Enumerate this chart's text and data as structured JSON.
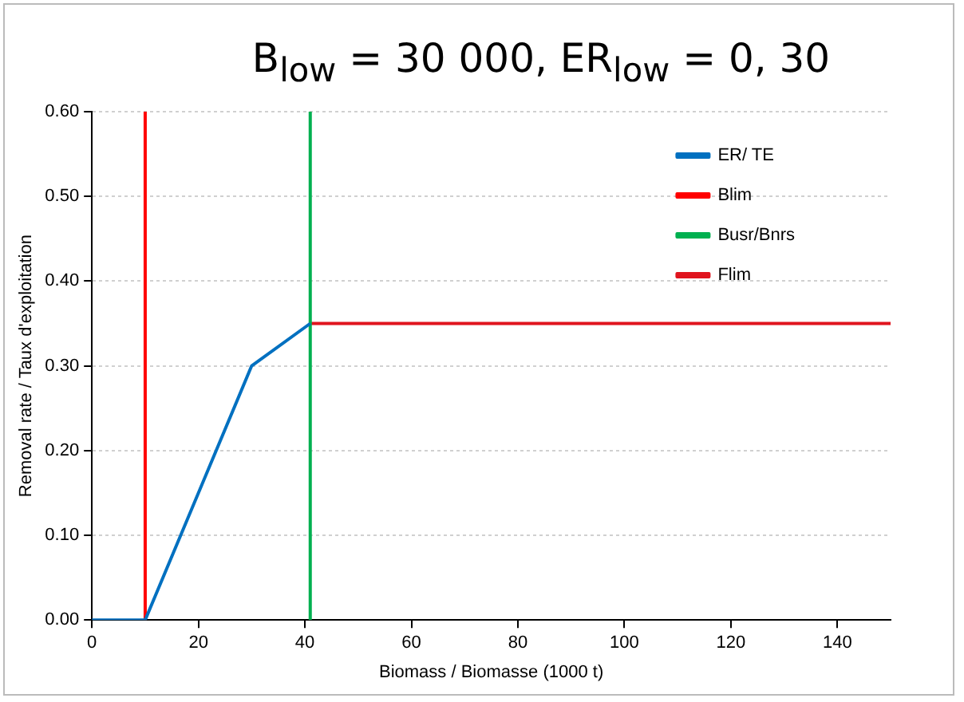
{
  "chart_data": {
    "type": "line",
    "title": "B$_{low}$ = 30 000,  ER$_{low}$ = 0, 30",
    "xlabel": "Biomass / Biomasse (1000 t)",
    "ylabel": "Removal rate / Taux d'exploitation",
    "series": [
      {
        "name": "ER/ TE",
        "color": "#0070c0",
        "x": [
          0,
          10,
          30,
          41
        ],
        "values": [
          0,
          0,
          0.3,
          0.35
        ]
      },
      {
        "name": "Blim",
        "color": "#ff0000",
        "x": [
          10,
          10
        ],
        "values": [
          0,
          0.6
        ]
      },
      {
        "name": "Busr/Bnrs",
        "color": "#00b050",
        "x": [
          41,
          41
        ],
        "values": [
          0,
          0.6
        ]
      },
      {
        "name": "Flim",
        "color": "#e0141e",
        "x": [
          41,
          150
        ],
        "values": [
          0.35,
          0.35
        ]
      }
    ],
    "xlim": [
      0,
      150
    ],
    "xticks": [
      0,
      20,
      40,
      60,
      80,
      100,
      120,
      140
    ],
    "ylim": [
      0,
      0.6
    ],
    "yticks": [
      {
        "value": 0,
        "label": "0.00"
      },
      {
        "value": 0.1,
        "label": "0.10"
      },
      {
        "value": 0.2,
        "label": "0.20"
      },
      {
        "value": 0.3,
        "label": "0.30"
      },
      {
        "value": 0.4,
        "label": "0.40"
      },
      {
        "value": 0.5,
        "label": "0.50"
      },
      {
        "value": 0.6,
        "label": "0.60"
      }
    ],
    "grid": "y",
    "legend": "top right",
    "marker": "none",
    "line_style": "solid"
  }
}
